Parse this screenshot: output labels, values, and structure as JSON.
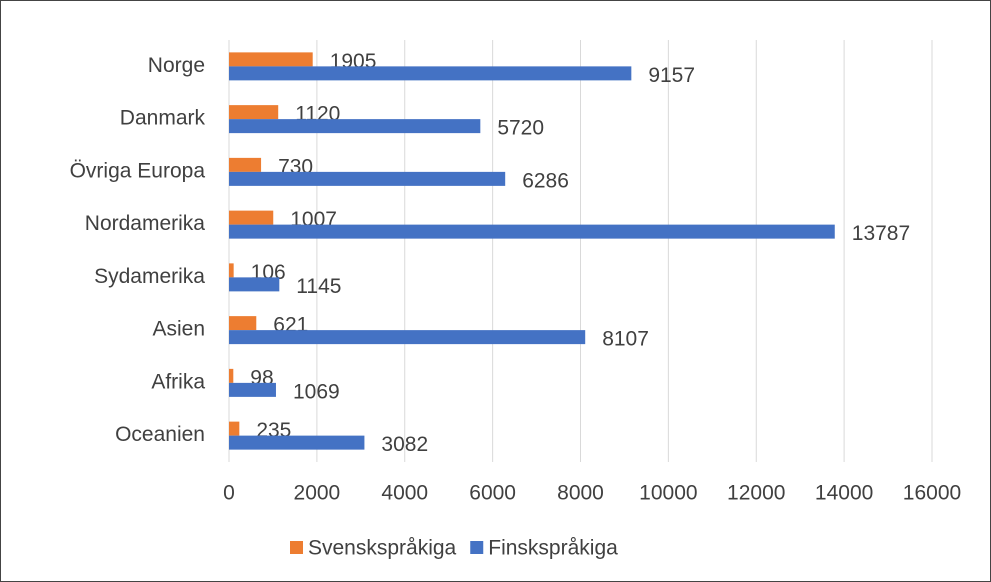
{
  "chart_data": {
    "type": "bar",
    "orientation": "horizontal",
    "categories": [
      "Norge",
      "Danmark",
      "Övriga Europa",
      "Nordamerika",
      "Sydamerika",
      "Asien",
      "Afrika",
      "Oceanien"
    ],
    "series": [
      {
        "name": "Svenskspråkiga",
        "color": "#ed7d31",
        "values": [
          1905,
          1120,
          730,
          1007,
          106,
          621,
          98,
          235
        ]
      },
      {
        "name": "Finskspråkiga",
        "color": "#4472c4",
        "values": [
          9157,
          5720,
          6286,
          13787,
          1145,
          8107,
          1069,
          3082
        ]
      }
    ],
    "xlim": [
      0,
      16000
    ],
    "xticks": [
      0,
      2000,
      4000,
      6000,
      8000,
      10000,
      12000,
      14000,
      16000
    ],
    "grid": true,
    "legend": "bottom"
  }
}
